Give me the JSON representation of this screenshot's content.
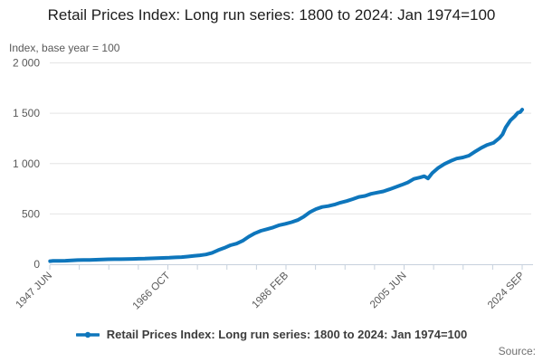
{
  "title": "Retail Prices Index: Long run series: 1800 to 2024: Jan 1974=100",
  "y_axis_unit_label": "Index, base year = 100",
  "source_label": "Source:",
  "legend": {
    "series_label": "Retail Prices Index: Long run series: 1800 to 2024: Jan 1974=100"
  },
  "colors": {
    "line": "#0e76bc",
    "grid": "#e4e4e4",
    "axis": "#c6d0dd",
    "muted_text": "#595959"
  },
  "chart_data": {
    "type": "line",
    "title": "Retail Prices Index: Long run series: 1800 to 2024: Jan 1974=100",
    "xlabel": "",
    "ylabel": "Index, base year = 100",
    "ylim": [
      0,
      2000
    ],
    "xlim": [
      1947.46,
      2024.71
    ],
    "grid": "horizontal",
    "legend_position": "bottom",
    "y_ticks": [
      0,
      500,
      1000,
      1500,
      2000
    ],
    "y_tick_labels": [
      "0",
      "500",
      "1 000",
      "1 500",
      "2 000"
    ],
    "x_major_tick_labels": [
      "1947 JUN",
      "1966 OCT",
      "1986 FEB",
      "2005 JUN",
      "2024 SEP"
    ],
    "x_minor_ticks_per_major": 4,
    "series": [
      {
        "name": "Retail Prices Index: Long run series: 1800 to 2024: Jan 1974=100",
        "color": "#0e76bc",
        "x": [
          1947.5,
          1948,
          1949,
          1950,
          1951,
          1952,
          1953,
          1954,
          1955,
          1956,
          1957,
          1958,
          1959,
          1960,
          1961,
          1962,
          1963,
          1964,
          1965,
          1966,
          1967,
          1968,
          1969,
          1970,
          1971,
          1972,
          1973,
          1974,
          1975,
          1976,
          1977,
          1978,
          1979,
          1980,
          1981,
          1982,
          1983,
          1984,
          1985,
          1986,
          1987,
          1988,
          1989,
          1990,
          1991,
          1992,
          1993,
          1994,
          1995,
          1996,
          1997,
          1998,
          1999,
          2000,
          2001,
          2002,
          2003,
          2004,
          2005,
          2006,
          2007,
          2008,
          2008.7,
          2009.3,
          2010,
          2011,
          2012,
          2013,
          2014,
          2015,
          2016,
          2017,
          2018,
          2019,
          2020,
          2021,
          2021.5,
          2022,
          2022.8,
          2023.5,
          2024,
          2024.4,
          2024.71
        ],
        "values": [
          31,
          33,
          34,
          35,
          38,
          41,
          42,
          43,
          45,
          47,
          49,
          50,
          50.5,
          51,
          53,
          55,
          56,
          58,
          61,
          63,
          65,
          68,
          71,
          76,
          83,
          89,
          97,
          113,
          140,
          163,
          189,
          205,
          233,
          274,
          307,
          333,
          349,
          366,
          388,
          402,
          418,
          439,
          473,
          518,
          548,
          569,
          578,
          592,
          612,
          627,
          647,
          669,
          679,
          699,
          712,
          724,
          744,
          767,
          788,
          813,
          848,
          862,
          875,
          852,
          905,
          958,
          996,
          1026,
          1050,
          1061,
          1079,
          1118,
          1156,
          1186,
          1205,
          1254,
          1290,
          1358,
          1430,
          1470,
          1505,
          1512,
          1536
        ]
      }
    ]
  }
}
